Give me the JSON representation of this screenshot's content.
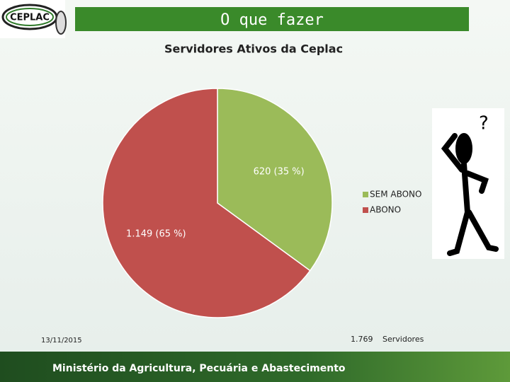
{
  "header": {
    "logo": "CEPLAC",
    "title": "O que fazer"
  },
  "chart_data": {
    "type": "pie",
    "title": "Servidores Ativos da Ceplac",
    "categories": [
      "SEM ABONO",
      "ABONO"
    ],
    "values": [
      620,
      1149
    ],
    "value_labels": [
      "620 (35 %)",
      "1.149 (65 %)"
    ],
    "colors": [
      "#9bbb59",
      "#c0504d"
    ],
    "legend": "right"
  },
  "date": "13/11/2015",
  "total": {
    "number": "1.769",
    "unit": "Servidores"
  },
  "footer": "Ministério da Agricultura, Pecuária e Abastecimento"
}
